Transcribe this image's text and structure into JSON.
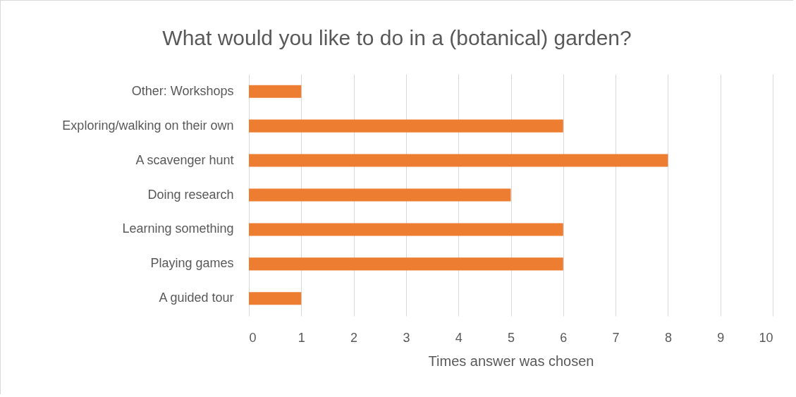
{
  "chart_data": {
    "type": "bar",
    "orientation": "horizontal",
    "title": "What would you like to do in a (botanical) garden?",
    "xlabel": "Times answer was chosen",
    "categories": [
      "Other: Workshops",
      "Exploring/walking on their own",
      "A scavenger hunt",
      "Doing research",
      "Learning something",
      "Playing games",
      "A guided tour"
    ],
    "values": [
      1,
      6,
      8,
      5,
      6,
      6,
      1
    ],
    "color": "#ed7d31",
    "xlim": [
      0,
      10
    ],
    "xticks": [
      0,
      1,
      2,
      3,
      4,
      5,
      6,
      7,
      8,
      9,
      10
    ],
    "grid": "x"
  }
}
